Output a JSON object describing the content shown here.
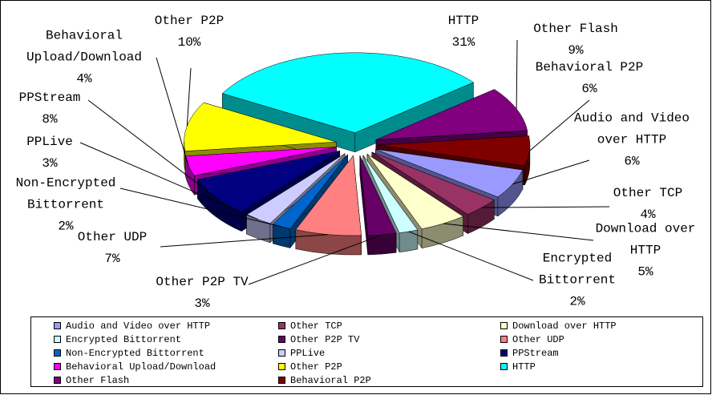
{
  "chart_data": {
    "type": "pie",
    "categories": [
      "Audio and Video over HTTP",
      "Other TCP",
      "Download over HTTP",
      "Encrypted Bittorrent",
      "Other P2P TV",
      "Other UDP",
      "Non-Encrypted Bittorrent",
      "PPLive",
      "PPStream",
      "Behavioral Upload/Download",
      "Other P2P",
      "HTTP",
      "Other Flash",
      "Behavioral P2P"
    ],
    "values": [
      6,
      4,
      5,
      2,
      3,
      7,
      2,
      3,
      8,
      4,
      10,
      31,
      9,
      6
    ],
    "value_labels": [
      "6%",
      "4%",
      "5%",
      "2%",
      "3%",
      "7%",
      "2%",
      "3%",
      "8%",
      "4%",
      "10%",
      "31%",
      "9%",
      "6%"
    ],
    "colors": [
      "#9999ff",
      "#993366",
      "#ffffcc",
      "#ccffff",
      "#660066",
      "#ff8080",
      "#0066cc",
      "#ccccff",
      "#000080",
      "#ff00ff",
      "#ffff00",
      "#00ffff",
      "#800080",
      "#800000"
    ],
    "legend": "bottom"
  }
}
